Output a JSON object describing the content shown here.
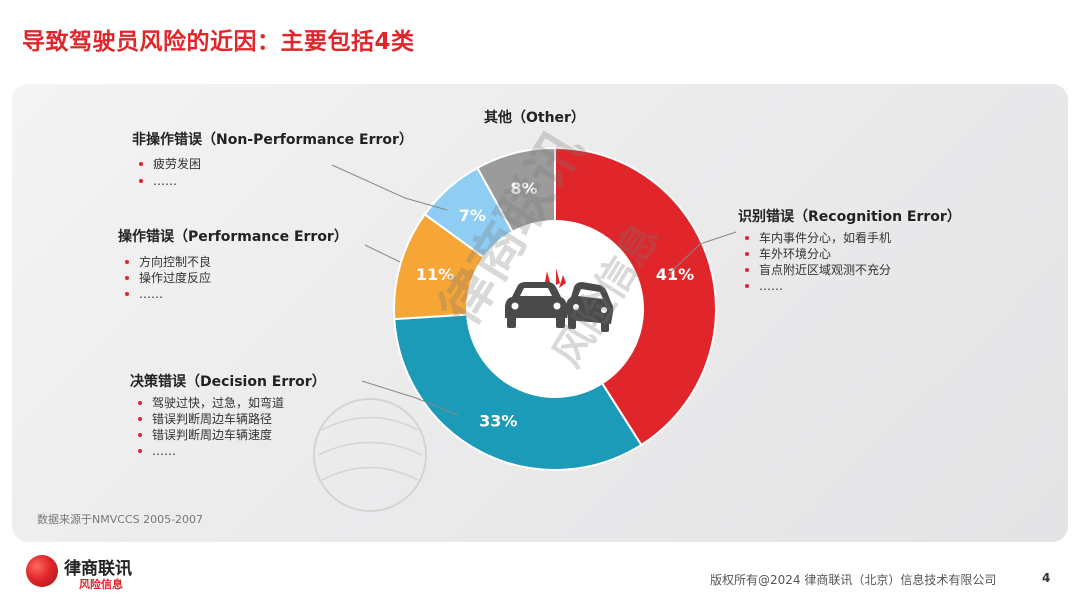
{
  "title": "导致驾驶员风险的近因：主要包括4类",
  "colors": {
    "accent": "#e0262b",
    "other": "#9b9b9b",
    "non_performance": "#8fcdf2",
    "performance": "#f5a637",
    "decision": "#1b9bb7",
    "recognition": "#e0262b"
  },
  "chart_data": {
    "type": "pie",
    "donut": true,
    "slices": [
      {
        "key": "recognition",
        "label": "识别错误（Recognition Error）",
        "value": 41,
        "display": "41%",
        "color": "#e0262b",
        "bullets": [
          "车内事件分心，如看手机",
          "车外环境分心",
          "盲点附近区域观测不充分",
          "……"
        ]
      },
      {
        "key": "decision",
        "label": "决策错误（Decision Error）",
        "value": 33,
        "display": "33%",
        "color": "#1b9bb7",
        "bullets": [
          "驾驶过快，过急，如弯道",
          "错误判断周边车辆路径",
          "错误判断周边车辆速度",
          "……"
        ]
      },
      {
        "key": "performance",
        "label": "操作错误（Performance Error）",
        "value": 11,
        "display": "11%",
        "color": "#f5a637",
        "bullets": [
          "方向控制不良",
          "操作过度反应",
          "……"
        ]
      },
      {
        "key": "non_performance",
        "label": "非操作错误（Non-Performance Error）",
        "value": 7,
        "display": "7%",
        "color": "#8fcdf2",
        "bullets": [
          "疲劳发困",
          "……"
        ]
      },
      {
        "key": "other",
        "label": "其他（Other）",
        "value": 8,
        "display": "8%",
        "color": "#9b9b9b",
        "bullets": []
      }
    ]
  },
  "source": "数据来源于NMVCCS 2005-2007",
  "watermark": "律商联讯 风险信息",
  "logo": {
    "name": "律商联讯",
    "sub": "风险信息"
  },
  "footer": {
    "copyright": "版权所有@2024 律商联讯（北京）信息技术有限公司",
    "page": "4"
  }
}
